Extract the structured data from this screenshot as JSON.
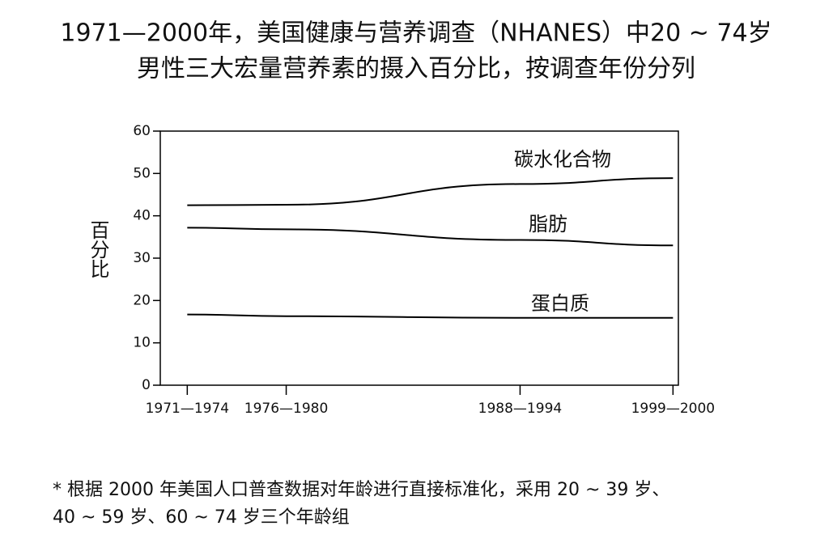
{
  "chart_data": {
    "type": "line",
    "title": [
      "1971—2000年，美国健康与营养调查（NHANES）中20 ~ 74岁",
      "男性三大宏量营养素的摄入百分比，按调查年份分列"
    ],
    "y_label": "百分比",
    "x": [
      1972.5,
      1978,
      1991,
      1999.5
    ],
    "xlim": [
      1971,
      1999.8
    ],
    "xticks": [
      {
        "value": 1972.5,
        "label": "1971—1974"
      },
      {
        "value": 1978,
        "label": "1976—1980"
      },
      {
        "value": 1991,
        "label": "1988—1994"
      },
      {
        "value": 1999.5,
        "label": "1999—2000"
      }
    ],
    "ylim": [
      0,
      60
    ],
    "yticks": [
      0,
      10,
      20,
      30,
      40,
      50,
      60
    ],
    "series": [
      {
        "name": "碳水化合物",
        "color": "#000000",
        "values": [
          42.5,
          42.6,
          47.5,
          48.9
        ]
      },
      {
        "name": "脂肪",
        "color": "#000000",
        "values": [
          37.2,
          36.8,
          34.3,
          33
        ]
      },
      {
        "name": "蛋白质",
        "color": "#000000",
        "values": [
          16.7,
          16.3,
          15.9,
          15.9
        ]
      }
    ],
    "footnote": [
      "* 根据 2000 年美国人口普查数据对年龄进行直接标准化，采用 20 ~ 39 岁、",
      "40 ~ 59 岁、60 ~ 74 岁三个年龄组"
    ]
  }
}
